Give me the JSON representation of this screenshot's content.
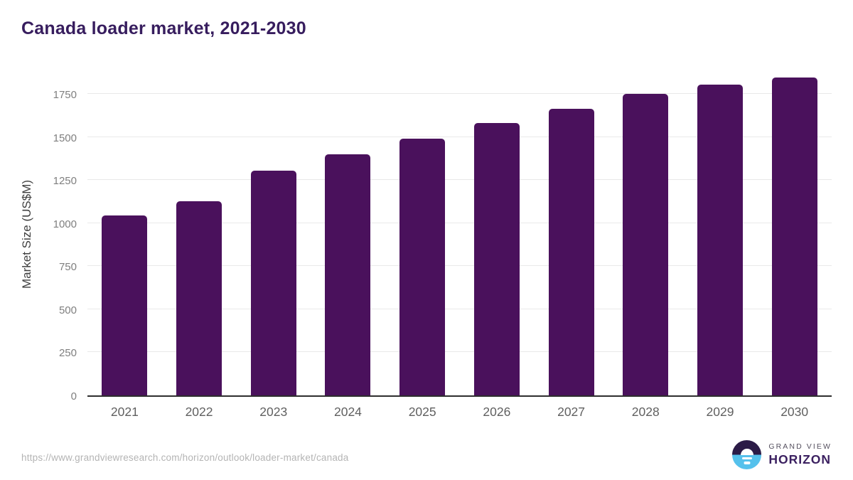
{
  "title": "Canada loader market, 2021-2030",
  "chart_data": {
    "type": "bar",
    "title": "Canada loader market, 2021-2030",
    "categories": [
      "2021",
      "2022",
      "2023",
      "2024",
      "2025",
      "2026",
      "2027",
      "2028",
      "2029",
      "2030"
    ],
    "values": [
      1045,
      1125,
      1305,
      1400,
      1490,
      1580,
      1665,
      1750,
      1805,
      1845
    ],
    "xlabel": "",
    "ylabel": "Market Size (US$M)",
    "ylim": [
      0,
      1890
    ],
    "yticks": [
      0,
      250,
      500,
      750,
      1000,
      1250,
      1500,
      1750
    ],
    "grid": true,
    "legend": false,
    "bar_color": "#4a115c",
    "gridline_color": "#e9e9e9",
    "axis_line_color": "#2e2e2e",
    "tick_label_color": "#7f7f7f",
    "x_label_color": "#606060"
  },
  "footer": {
    "source_url": "https://www.grandviewresearch.com/horizon/outlook/loader-market/canada",
    "logo_line1": "GRAND VIEW",
    "logo_line2": "HORIZON",
    "logo_colors": {
      "top": "#2b1b47",
      "bottom": "#55c1ec",
      "wordmark": "#3b2060"
    }
  },
  "colors": {
    "title": "#371d5e",
    "background": "#ffffff"
  }
}
